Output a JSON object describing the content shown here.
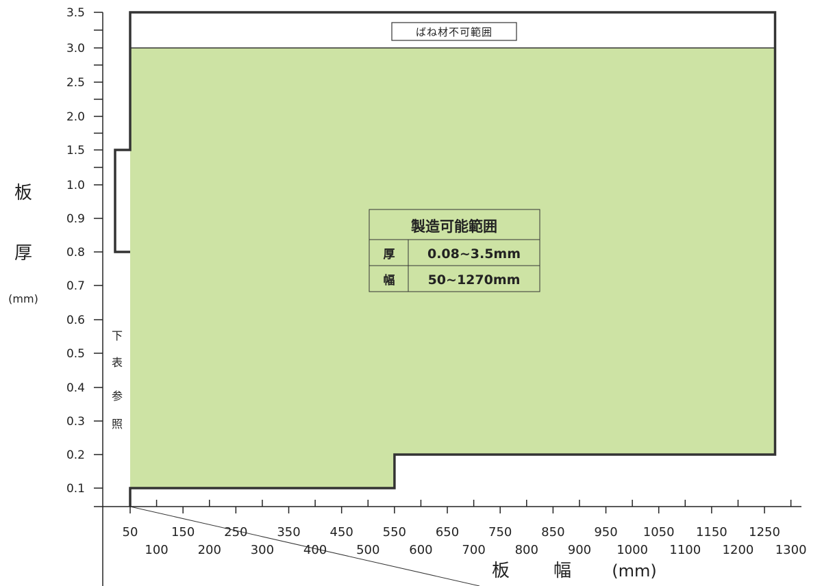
{
  "chart_data": {
    "type": "area",
    "title": "",
    "ylabel": {
      "chars": [
        "板",
        "厚"
      ],
      "unit": "(mm)"
    },
    "xlabel": {
      "chars": [
        "板",
        "幅"
      ],
      "unit": "(mm)"
    },
    "y_ticks": [
      "0.1",
      "0.2",
      "0.3",
      "0.4",
      "0.5",
      "0.6",
      "0.7",
      "0.8",
      "0.9",
      "1.0",
      "1.5",
      "2.0",
      "2.5",
      "3.0",
      "3.5"
    ],
    "x_ticks_upper": [
      "50",
      "150",
      "250",
      "350",
      "450",
      "550",
      "650",
      "750",
      "850",
      "950",
      "1050",
      "1150",
      "1250"
    ],
    "x_ticks_lower": [
      "100",
      "200",
      "300",
      "400",
      "500",
      "600",
      "700",
      "800",
      "900",
      "1000",
      "1100",
      "1200",
      "1300"
    ],
    "xlim": [
      50,
      1300
    ],
    "y_scale": "piecewise (0.1 step to 1.0, then 0.5 step)",
    "manufacturable_region": {
      "fill_color": "#cde3a4",
      "boundary": [
        {
          "x": 50,
          "y": 0.1
        },
        {
          "x": 550,
          "y": 0.1
        },
        {
          "x": 550,
          "y": 0.2
        },
        {
          "x": 1270,
          "y": 0.2
        },
        {
          "x": 1270,
          "y": 3.0
        },
        {
          "x": 50,
          "y": 3.0
        }
      ]
    },
    "outer_boundary": [
      {
        "x": 50,
        "y": 0.05
      },
      {
        "x": 50,
        "y": 0.1
      },
      {
        "x": 550,
        "y": 0.1
      },
      {
        "x": 550,
        "y": 0.2
      },
      {
        "x": 1270,
        "y": 0.2
      },
      {
        "x": 1270,
        "y": 3.5
      },
      {
        "x": 50,
        "y": 3.5
      },
      {
        "x": 50,
        "y": 1.5
      },
      {
        "x": 30,
        "y": 1.5
      },
      {
        "x": 30,
        "y": 0.8
      },
      {
        "x": 50,
        "y": 0.8
      }
    ],
    "spring_impossible_label": "ばね材不可範囲",
    "see_below_label": [
      "下",
      "表",
      "参",
      "照"
    ],
    "info_table": {
      "header": "製造可能範囲",
      "rows": [
        {
          "key": "厚",
          "value": "0.08~3.5mm"
        },
        {
          "key": "幅",
          "value": "50~1270mm"
        }
      ]
    }
  }
}
